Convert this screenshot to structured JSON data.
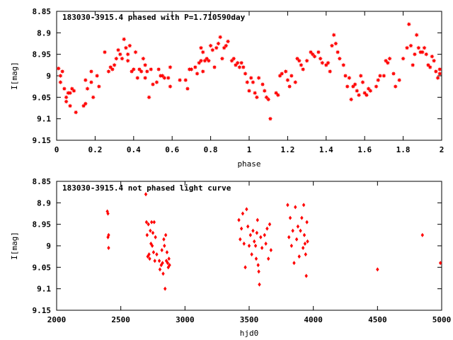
{
  "chart_data": [
    {
      "type": "scatter",
      "title": "183030-3915.4 phased with P=1.710590day",
      "xlabel": "phase",
      "ylabel": "I[mag]",
      "xlim": [
        0,
        2
      ],
      "ylim": [
        9.15,
        8.85
      ],
      "y_inverted": true,
      "grid": false,
      "marker": "star",
      "color": "#ff0000",
      "xticks": [
        "0",
        "0.2",
        "0.4",
        "0.6",
        "0.8",
        "1",
        "1.2",
        "1.4",
        "1.6",
        "1.8",
        "2"
      ],
      "yticks": [
        "8.85",
        "8.9",
        "8.95",
        "9",
        "9.05",
        "9.1",
        "9.15"
      ],
      "points": [
        [
          0.01,
          8.983
        ],
        [
          0.02,
          9.0
        ],
        [
          0.02,
          9.015
        ],
        [
          0.03,
          8.99
        ],
        [
          0.04,
          9.03
        ],
        [
          0.05,
          9.05
        ],
        [
          0.05,
          9.06
        ],
        [
          0.06,
          9.04
        ],
        [
          0.07,
          9.04
        ],
        [
          0.07,
          9.07
        ],
        [
          0.08,
          9.03
        ],
        [
          0.09,
          9.035
        ],
        [
          0.1,
          9.085
        ],
        [
          0.14,
          9.07
        ],
        [
          0.15,
          9.065
        ],
        [
          0.15,
          9.01
        ],
        [
          0.16,
          9.03
        ],
        [
          0.18,
          9.015
        ],
        [
          0.18,
          8.99
        ],
        [
          0.19,
          9.05
        ],
        [
          0.21,
          9.0
        ],
        [
          0.22,
          9.025
        ],
        [
          0.25,
          8.945
        ],
        [
          0.27,
          8.99
        ],
        [
          0.28,
          8.98
        ],
        [
          0.29,
          8.985
        ],
        [
          0.3,
          8.975
        ],
        [
          0.31,
          8.96
        ],
        [
          0.32,
          8.94
        ],
        [
          0.33,
          8.95
        ],
        [
          0.34,
          8.96
        ],
        [
          0.35,
          8.915
        ],
        [
          0.36,
          8.935
        ],
        [
          0.37,
          8.965
        ],
        [
          0.37,
          8.95
        ],
        [
          0.38,
          8.93
        ],
        [
          0.39,
          8.99
        ],
        [
          0.4,
          8.985
        ],
        [
          0.41,
          8.945
        ],
        [
          0.42,
          9.005
        ],
        [
          0.43,
          8.985
        ],
        [
          0.44,
          8.99
        ],
        [
          0.45,
          8.96
        ],
        [
          0.46,
          8.975
        ],
        [
          0.46,
          9.005
        ],
        [
          0.47,
          8.99
        ],
        [
          0.48,
          9.05
        ],
        [
          0.49,
          8.985
        ],
        [
          0.5,
          9.02
        ],
        [
          0.52,
          9.015
        ],
        [
          0.53,
          8.985
        ],
        [
          0.54,
          9.0
        ],
        [
          0.55,
          9.0
        ],
        [
          0.56,
          9.005
        ],
        [
          0.58,
          9.005
        ],
        [
          0.59,
          8.98
        ],
        [
          0.59,
          9.025
        ],
        [
          0.64,
          9.01
        ],
        [
          0.67,
          9.01
        ],
        [
          0.68,
          9.03
        ],
        [
          0.69,
          8.985
        ],
        [
          0.7,
          8.985
        ],
        [
          0.72,
          8.98
        ],
        [
          0.73,
          8.995
        ],
        [
          0.74,
          8.97
        ],
        [
          0.75,
          8.965
        ],
        [
          0.75,
          8.935
        ],
        [
          0.76,
          8.945
        ],
        [
          0.76,
          8.99
        ],
        [
          0.77,
          8.965
        ],
        [
          0.78,
          8.96
        ],
        [
          0.79,
          8.965
        ],
        [
          0.8,
          8.93
        ],
        [
          0.81,
          8.94
        ],
        [
          0.82,
          8.98
        ],
        [
          0.83,
          8.935
        ],
        [
          0.84,
          8.925
        ],
        [
          0.85,
          8.91
        ],
        [
          0.86,
          8.96
        ],
        [
          0.87,
          8.935
        ],
        [
          0.88,
          8.93
        ],
        [
          0.89,
          8.92
        ],
        [
          0.91,
          8.965
        ],
        [
          0.92,
          8.96
        ],
        [
          0.93,
          8.975
        ],
        [
          0.94,
          8.97
        ],
        [
          0.95,
          8.98
        ],
        [
          0.96,
          8.97
        ],
        [
          0.97,
          8.98
        ],
        [
          0.98,
          8.995
        ],
        [
          0.99,
          9.015
        ],
        [
          1.0,
          9.035
        ],
        [
          1.01,
          9.005
        ],
        [
          1.02,
          9.015
        ],
        [
          1.03,
          9.04
        ],
        [
          1.04,
          9.05
        ],
        [
          1.05,
          9.005
        ],
        [
          1.07,
          9.02
        ],
        [
          1.08,
          9.035
        ],
        [
          1.09,
          9.05
        ],
        [
          1.1,
          9.055
        ],
        [
          1.11,
          9.1
        ],
        [
          1.14,
          9.04
        ],
        [
          1.15,
          9.045
        ],
        [
          1.16,
          9.0
        ],
        [
          1.17,
          8.995
        ],
        [
          1.19,
          8.99
        ],
        [
          1.2,
          9.01
        ],
        [
          1.21,
          9.025
        ],
        [
          1.22,
          9.0
        ],
        [
          1.24,
          9.015
        ],
        [
          1.25,
          8.96
        ],
        [
          1.26,
          8.965
        ],
        [
          1.27,
          8.975
        ],
        [
          1.28,
          8.985
        ],
        [
          1.3,
          8.965
        ],
        [
          1.32,
          8.945
        ],
        [
          1.33,
          8.95
        ],
        [
          1.34,
          8.955
        ],
        [
          1.36,
          8.945
        ],
        [
          1.37,
          8.96
        ],
        [
          1.38,
          8.97
        ],
        [
          1.4,
          8.975
        ],
        [
          1.41,
          8.97
        ],
        [
          1.42,
          8.99
        ],
        [
          1.43,
          8.93
        ],
        [
          1.44,
          8.905
        ],
        [
          1.45,
          8.925
        ],
        [
          1.46,
          8.945
        ],
        [
          1.47,
          8.96
        ],
        [
          1.49,
          8.975
        ],
        [
          1.5,
          9.0
        ],
        [
          1.51,
          9.025
        ],
        [
          1.52,
          9.005
        ],
        [
          1.53,
          9.055
        ],
        [
          1.54,
          9.025
        ],
        [
          1.55,
          9.02
        ],
        [
          1.56,
          9.035
        ],
        [
          1.57,
          9.045
        ],
        [
          1.58,
          9.0
        ],
        [
          1.59,
          9.015
        ],
        [
          1.6,
          9.04
        ],
        [
          1.61,
          9.045
        ],
        [
          1.62,
          9.03
        ],
        [
          1.63,
          9.035
        ],
        [
          1.66,
          9.025
        ],
        [
          1.67,
          9.01
        ],
        [
          1.68,
          9.0
        ],
        [
          1.7,
          9.0
        ],
        [
          1.71,
          8.965
        ],
        [
          1.72,
          8.97
        ],
        [
          1.73,
          8.96
        ],
        [
          1.75,
          8.995
        ],
        [
          1.76,
          9.025
        ],
        [
          1.78,
          9.01
        ],
        [
          1.8,
          8.96
        ],
        [
          1.82,
          8.935
        ],
        [
          1.83,
          8.88
        ],
        [
          1.84,
          8.93
        ],
        [
          1.85,
          8.975
        ],
        [
          1.86,
          8.95
        ],
        [
          1.87,
          8.905
        ],
        [
          1.88,
          8.935
        ],
        [
          1.89,
          8.945
        ],
        [
          1.9,
          8.945
        ],
        [
          1.91,
          8.935
        ],
        [
          1.92,
          8.95
        ],
        [
          1.93,
          8.975
        ],
        [
          1.94,
          8.98
        ],
        [
          1.95,
          8.955
        ],
        [
          1.96,
          8.965
        ],
        [
          1.97,
          8.99
        ],
        [
          1.98,
          9.005
        ],
        [
          1.99,
          8.995
        ],
        [
          1.99,
          8.985
        ]
      ]
    },
    {
      "type": "scatter",
      "title": "183030-3915.4 not phased light curve",
      "xlabel": "hjd0",
      "ylabel": "I[mag]",
      "xlim": [
        2000,
        5000
      ],
      "ylim": [
        9.15,
        8.85
      ],
      "y_inverted": true,
      "grid": false,
      "marker": "diamond",
      "color": "#ff0000",
      "xticks": [
        "2000",
        "2500",
        "3000",
        "3500",
        "4000",
        "4500",
        "5000"
      ],
      "yticks": [
        "8.85",
        "8.9",
        "8.95",
        "9",
        "9.05",
        "9.1",
        "9.15"
      ],
      "points": [
        [
          2395,
          8.92
        ],
        [
          2400,
          8.925
        ],
        [
          2400,
          8.98
        ],
        [
          2405,
          8.975
        ],
        [
          2405,
          9.005
        ],
        [
          2695,
          8.88
        ],
        [
          2700,
          8.945
        ],
        [
          2705,
          8.975
        ],
        [
          2710,
          9.025
        ],
        [
          2715,
          8.95
        ],
        [
          2720,
          9.02
        ],
        [
          2725,
          9.03
        ],
        [
          2730,
          8.965
        ],
        [
          2735,
          8.995
        ],
        [
          2740,
          8.945
        ],
        [
          2745,
          9.0
        ],
        [
          2750,
          8.97
        ],
        [
          2755,
          9.015
        ],
        [
          2760,
          8.945
        ],
        [
          2765,
          9.035
        ],
        [
          2770,
          8.98
        ],
        [
          2780,
          9.02
        ],
        [
          2800,
          9.035
        ],
        [
          2805,
          9.055
        ],
        [
          2815,
          9.045
        ],
        [
          2820,
          9.01
        ],
        [
          2825,
          9.04
        ],
        [
          2830,
          9.065
        ],
        [
          2835,
          8.985
        ],
        [
          2840,
          9.0
        ],
        [
          2845,
          9.1
        ],
        [
          2850,
          8.975
        ],
        [
          2855,
          9.035
        ],
        [
          2860,
          9.015
        ],
        [
          2865,
          9.04
        ],
        [
          2870,
          9.05
        ],
        [
          2875,
          9.03
        ],
        [
          2880,
          9.045
        ],
        [
          3420,
          8.94
        ],
        [
          3430,
          8.985
        ],
        [
          3440,
          8.96
        ],
        [
          3450,
          8.925
        ],
        [
          3460,
          8.995
        ],
        [
          3470,
          9.05
        ],
        [
          3480,
          8.915
        ],
        [
          3490,
          8.955
        ],
        [
          3500,
          9.0
        ],
        [
          3510,
          8.975
        ],
        [
          3520,
          9.02
        ],
        [
          3530,
          8.965
        ],
        [
          3540,
          8.99
        ],
        [
          3550,
          9.0
        ],
        [
          3555,
          9.03
        ],
        [
          3560,
          8.97
        ],
        [
          3565,
          8.94
        ],
        [
          3570,
          9.045
        ],
        [
          3575,
          9.06
        ],
        [
          3580,
          9.09
        ],
        [
          3590,
          8.98
        ],
        [
          3600,
          9.005
        ],
        [
          3620,
          8.975
        ],
        [
          3630,
          8.995
        ],
        [
          3640,
          8.96
        ],
        [
          3650,
          9.03
        ],
        [
          3660,
          8.95
        ],
        [
          3670,
          9.01
        ],
        [
          3800,
          8.905
        ],
        [
          3810,
          8.98
        ],
        [
          3820,
          8.935
        ],
        [
          3830,
          9.0
        ],
        [
          3840,
          8.965
        ],
        [
          3850,
          9.04
        ],
        [
          3860,
          8.91
        ],
        [
          3870,
          8.985
        ],
        [
          3880,
          8.955
        ],
        [
          3890,
          9.025
        ],
        [
          3900,
          8.965
        ],
        [
          3910,
          8.935
        ],
        [
          3920,
          9.005
        ],
        [
          3925,
          8.905
        ],
        [
          3930,
          8.975
        ],
        [
          3935,
          8.995
        ],
        [
          3940,
          9.02
        ],
        [
          3945,
          9.07
        ],
        [
          3950,
          8.945
        ],
        [
          3955,
          8.99
        ],
        [
          4500,
          9.055
        ],
        [
          4850,
          8.975
        ],
        [
          4990,
          9.04
        ]
      ]
    }
  ]
}
